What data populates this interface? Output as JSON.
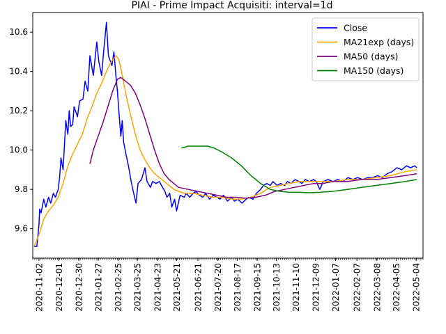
{
  "chart_data": {
    "type": "line",
    "title": "PIAI - Prime Impact Acquisiti: interval=1d",
    "xlabel": "",
    "ylabel": "",
    "x_tick_labels": [
      "2020-11-02",
      "2020-12-01",
      "2020-12-30",
      "2021-01-27",
      "2021-02-25",
      "2021-03-25",
      "2021-04-23",
      "2021-05-21",
      "2021-06-21",
      "2021-07-20",
      "2021-08-17",
      "2021-09-15",
      "2021-10-13",
      "2021-11-10",
      "2021-12-09",
      "2022-01-07",
      "2022-02-07",
      "2022-03-08",
      "2022-04-05",
      "2022-05-04"
    ],
    "y_ticks": [
      9.6,
      9.8,
      10.0,
      10.2,
      10.4,
      10.6
    ],
    "y_tick_labels": [
      "9.6",
      "9.8",
      "10.0",
      "10.2",
      "10.4",
      "10.6"
    ],
    "ylim": [
      9.45,
      10.7
    ],
    "xlim": [
      "2020-10-24",
      "2022-05-14"
    ],
    "grid": false,
    "legend_position": "top-right",
    "series": [
      {
        "name": "Close",
        "color": "#0000ff",
        "points": [
          [
            "2020-10-26",
            9.51
          ],
          [
            "2020-10-30",
            9.51
          ],
          [
            "2020-11-02",
            9.62
          ],
          [
            "2020-11-03",
            9.7
          ],
          [
            "2020-11-05",
            9.68
          ],
          [
            "2020-11-09",
            9.75
          ],
          [
            "2020-11-12",
            9.71
          ],
          [
            "2020-11-16",
            9.76
          ],
          [
            "2020-11-19",
            9.73
          ],
          [
            "2020-11-23",
            9.78
          ],
          [
            "2020-11-26",
            9.76
          ],
          [
            "2020-11-30",
            9.8
          ],
          [
            "2020-12-02",
            9.86
          ],
          [
            "2020-12-04",
            9.96
          ],
          [
            "2020-12-07",
            9.9
          ],
          [
            "2020-12-09",
            10.02
          ],
          [
            "2020-12-11",
            10.15
          ],
          [
            "2020-12-14",
            10.08
          ],
          [
            "2020-12-16",
            10.2
          ],
          [
            "2020-12-18",
            10.12
          ],
          [
            "2020-12-21",
            10.13
          ],
          [
            "2020-12-23",
            10.22
          ],
          [
            "2020-12-28",
            10.17
          ],
          [
            "2020-12-31",
            10.25
          ],
          [
            "2021-01-05",
            10.26
          ],
          [
            "2021-01-08",
            10.35
          ],
          [
            "2021-01-12",
            10.3
          ],
          [
            "2021-01-15",
            10.48
          ],
          [
            "2021-01-20",
            10.38
          ],
          [
            "2021-01-25",
            10.55
          ],
          [
            "2021-01-28",
            10.45
          ],
          [
            "2021-02-01",
            10.38
          ],
          [
            "2021-02-04",
            10.5
          ],
          [
            "2021-02-08",
            10.65
          ],
          [
            "2021-02-11",
            10.48
          ],
          [
            "2021-02-16",
            10.43
          ],
          [
            "2021-02-19",
            10.5
          ],
          [
            "2021-02-22",
            10.37
          ],
          [
            "2021-02-24",
            10.3
          ],
          [
            "2021-02-26",
            10.2
          ],
          [
            "2021-03-01",
            10.07
          ],
          [
            "2021-03-03",
            10.15
          ],
          [
            "2021-03-05",
            10.04
          ],
          [
            "2021-03-09",
            9.97
          ],
          [
            "2021-03-12",
            9.92
          ],
          [
            "2021-03-16",
            9.84
          ],
          [
            "2021-03-19",
            9.79
          ],
          [
            "2021-03-23",
            9.73
          ],
          [
            "2021-03-26",
            9.83
          ],
          [
            "2021-03-31",
            9.85
          ],
          [
            "2021-04-05",
            9.91
          ],
          [
            "2021-04-08",
            9.84
          ],
          [
            "2021-04-13",
            9.81
          ],
          [
            "2021-04-16",
            9.84
          ],
          [
            "2021-04-21",
            9.83
          ],
          [
            "2021-04-26",
            9.84
          ],
          [
            "2021-04-29",
            9.82
          ],
          [
            "2021-05-04",
            9.79
          ],
          [
            "2021-05-07",
            9.76
          ],
          [
            "2021-05-11",
            9.78
          ],
          [
            "2021-05-14",
            9.71
          ],
          [
            "2021-05-18",
            9.75
          ],
          [
            "2021-05-21",
            9.69
          ],
          [
            "2021-05-26",
            9.77
          ],
          [
            "2021-06-01",
            9.76
          ],
          [
            "2021-06-04",
            9.78
          ],
          [
            "2021-06-09",
            9.76
          ],
          [
            "2021-06-14",
            9.78
          ],
          [
            "2021-06-18",
            9.79
          ],
          [
            "2021-06-23",
            9.77
          ],
          [
            "2021-06-28",
            9.76
          ],
          [
            "2021-07-02",
            9.78
          ],
          [
            "2021-07-08",
            9.75
          ],
          [
            "2021-07-13",
            9.77
          ],
          [
            "2021-07-19",
            9.76
          ],
          [
            "2021-07-23",
            9.75
          ],
          [
            "2021-07-28",
            9.77
          ],
          [
            "2021-08-03",
            9.74
          ],
          [
            "2021-08-09",
            9.76
          ],
          [
            "2021-08-13",
            9.74
          ],
          [
            "2021-08-18",
            9.75
          ],
          [
            "2021-08-24",
            9.73
          ],
          [
            "2021-08-30",
            9.75
          ],
          [
            "2021-09-03",
            9.76
          ],
          [
            "2021-09-09",
            9.75
          ],
          [
            "2021-09-14",
            9.78
          ],
          [
            "2021-09-20",
            9.8
          ],
          [
            "2021-09-24",
            9.82
          ],
          [
            "2021-09-29",
            9.83
          ],
          [
            "2021-10-04",
            9.82
          ],
          [
            "2021-10-08",
            9.84
          ],
          [
            "2021-10-14",
            9.82
          ],
          [
            "2021-10-19",
            9.83
          ],
          [
            "2021-10-25",
            9.82
          ],
          [
            "2021-10-29",
            9.84
          ],
          [
            "2021-11-03",
            9.83
          ],
          [
            "2021-11-09",
            9.85
          ],
          [
            "2021-11-15",
            9.84
          ],
          [
            "2021-11-19",
            9.83
          ],
          [
            "2021-11-24",
            9.85
          ],
          [
            "2021-11-30",
            9.84
          ],
          [
            "2021-12-06",
            9.85
          ],
          [
            "2021-12-10",
            9.84
          ],
          [
            "2021-12-15",
            9.8
          ],
          [
            "2021-12-20",
            9.84
          ],
          [
            "2021-12-27",
            9.85
          ],
          [
            "2022-01-03",
            9.84
          ],
          [
            "2022-01-10",
            9.85
          ],
          [
            "2022-01-18",
            9.84
          ],
          [
            "2022-01-25",
            9.86
          ],
          [
            "2022-02-01",
            9.85
          ],
          [
            "2022-02-08",
            9.86
          ],
          [
            "2022-02-15",
            9.85
          ],
          [
            "2022-02-23",
            9.86
          ],
          [
            "2022-03-02",
            9.86
          ],
          [
            "2022-03-09",
            9.87
          ],
          [
            "2022-03-16",
            9.86
          ],
          [
            "2022-03-23",
            9.88
          ],
          [
            "2022-03-30",
            9.89
          ],
          [
            "2022-04-06",
            9.91
          ],
          [
            "2022-04-13",
            9.9
          ],
          [
            "2022-04-20",
            9.92
          ],
          [
            "2022-04-26",
            9.91
          ],
          [
            "2022-05-02",
            9.92
          ],
          [
            "2022-05-05",
            9.91
          ]
        ]
      },
      {
        "name": "MA21exp (days)",
        "color": "#ffa500",
        "points": [
          [
            "2020-10-26",
            9.51
          ],
          [
            "2020-11-02",
            9.57
          ],
          [
            "2020-11-09",
            9.65
          ],
          [
            "2020-11-16",
            9.69
          ],
          [
            "2020-11-23",
            9.72
          ],
          [
            "2020-11-30",
            9.76
          ],
          [
            "2020-12-07",
            9.83
          ],
          [
            "2020-12-14",
            9.92
          ],
          [
            "2020-12-21",
            9.98
          ],
          [
            "2020-12-28",
            10.03
          ],
          [
            "2021-01-04",
            10.08
          ],
          [
            "2021-01-11",
            10.16
          ],
          [
            "2021-01-18",
            10.22
          ],
          [
            "2021-01-25",
            10.29
          ],
          [
            "2021-02-01",
            10.34
          ],
          [
            "2021-02-08",
            10.4
          ],
          [
            "2021-02-15",
            10.45
          ],
          [
            "2021-02-22",
            10.48
          ],
          [
            "2021-02-26",
            10.46
          ],
          [
            "2021-03-02",
            10.4
          ],
          [
            "2021-03-08",
            10.29
          ],
          [
            "2021-03-15",
            10.18
          ],
          [
            "2021-03-22",
            10.08
          ],
          [
            "2021-03-29",
            10.0
          ],
          [
            "2021-04-05",
            9.95
          ],
          [
            "2021-04-12",
            9.91
          ],
          [
            "2021-04-19",
            9.88
          ],
          [
            "2021-04-26",
            9.86
          ],
          [
            "2021-05-03",
            9.84
          ],
          [
            "2021-05-10",
            9.82
          ],
          [
            "2021-05-17",
            9.8
          ],
          [
            "2021-05-24",
            9.79
          ],
          [
            "2021-06-01",
            9.78
          ],
          [
            "2021-06-14",
            9.78
          ],
          [
            "2021-06-28",
            9.77
          ],
          [
            "2021-07-12",
            9.76
          ],
          [
            "2021-07-26",
            9.76
          ],
          [
            "2021-08-09",
            9.75
          ],
          [
            "2021-08-23",
            9.75
          ],
          [
            "2021-09-06",
            9.76
          ],
          [
            "2021-09-20",
            9.78
          ],
          [
            "2021-10-04",
            9.81
          ],
          [
            "2021-10-18",
            9.82
          ],
          [
            "2021-11-01",
            9.83
          ],
          [
            "2021-11-15",
            9.84
          ],
          [
            "2021-12-01",
            9.84
          ],
          [
            "2021-12-15",
            9.84
          ],
          [
            "2022-01-03",
            9.84
          ],
          [
            "2022-01-24",
            9.85
          ],
          [
            "2022-02-14",
            9.85
          ],
          [
            "2022-03-07",
            9.86
          ],
          [
            "2022-03-28",
            9.87
          ],
          [
            "2022-04-18",
            9.89
          ],
          [
            "2022-05-05",
            9.9
          ]
        ]
      },
      {
        "name": "MA50 (days)",
        "color": "#800080",
        "points": [
          [
            "2021-01-15",
            9.93
          ],
          [
            "2021-01-20",
            10.0
          ],
          [
            "2021-01-27",
            10.07
          ],
          [
            "2021-02-03",
            10.14
          ],
          [
            "2021-02-10",
            10.22
          ],
          [
            "2021-02-17",
            10.3
          ],
          [
            "2021-02-24",
            10.36
          ],
          [
            "2021-03-01",
            10.37
          ],
          [
            "2021-03-08",
            10.35
          ],
          [
            "2021-03-15",
            10.33
          ],
          [
            "2021-03-22",
            10.29
          ],
          [
            "2021-03-29",
            10.23
          ],
          [
            "2021-04-05",
            10.16
          ],
          [
            "2021-04-12",
            10.08
          ],
          [
            "2021-04-19",
            10.0
          ],
          [
            "2021-04-26",
            9.93
          ],
          [
            "2021-05-03",
            9.88
          ],
          [
            "2021-05-10",
            9.85
          ],
          [
            "2021-05-17",
            9.83
          ],
          [
            "2021-05-24",
            9.81
          ],
          [
            "2021-06-07",
            9.8
          ],
          [
            "2021-06-21",
            9.79
          ],
          [
            "2021-07-05",
            9.78
          ],
          [
            "2021-07-19",
            9.77
          ],
          [
            "2021-08-02",
            9.76
          ],
          [
            "2021-08-16",
            9.76
          ],
          [
            "2021-08-30",
            9.755
          ],
          [
            "2021-09-13",
            9.76
          ],
          [
            "2021-09-27",
            9.77
          ],
          [
            "2021-10-11",
            9.79
          ],
          [
            "2021-10-25",
            9.8
          ],
          [
            "2021-11-08",
            9.81
          ],
          [
            "2021-11-22",
            9.82
          ],
          [
            "2021-12-06",
            9.83
          ],
          [
            "2021-12-20",
            9.83
          ],
          [
            "2022-01-03",
            9.84
          ],
          [
            "2022-01-24",
            9.84
          ],
          [
            "2022-02-14",
            9.85
          ],
          [
            "2022-03-07",
            9.85
          ],
          [
            "2022-03-28",
            9.86
          ],
          [
            "2022-04-18",
            9.87
          ],
          [
            "2022-05-05",
            9.88
          ]
        ]
      },
      {
        "name": "MA150 (days)",
        "color": "#008000",
        "points": [
          [
            "2021-05-28",
            10.01
          ],
          [
            "2021-06-07",
            10.02
          ],
          [
            "2021-06-21",
            10.02
          ],
          [
            "2021-07-05",
            10.02
          ],
          [
            "2021-07-15",
            10.01
          ],
          [
            "2021-07-26",
            9.99
          ],
          [
            "2021-08-09",
            9.96
          ],
          [
            "2021-08-23",
            9.92
          ],
          [
            "2021-09-06",
            9.87
          ],
          [
            "2021-09-20",
            9.83
          ],
          [
            "2021-10-04",
            9.8
          ],
          [
            "2021-10-18",
            9.79
          ],
          [
            "2021-11-01",
            9.785
          ],
          [
            "2021-11-15",
            9.785
          ],
          [
            "2021-12-01",
            9.783
          ],
          [
            "2021-12-15",
            9.785
          ],
          [
            "2022-01-03",
            9.79
          ],
          [
            "2022-01-24",
            9.8
          ],
          [
            "2022-02-14",
            9.81
          ],
          [
            "2022-03-07",
            9.82
          ],
          [
            "2022-03-28",
            9.83
          ],
          [
            "2022-04-18",
            9.84
          ],
          [
            "2022-05-05",
            9.85
          ]
        ]
      }
    ]
  }
}
